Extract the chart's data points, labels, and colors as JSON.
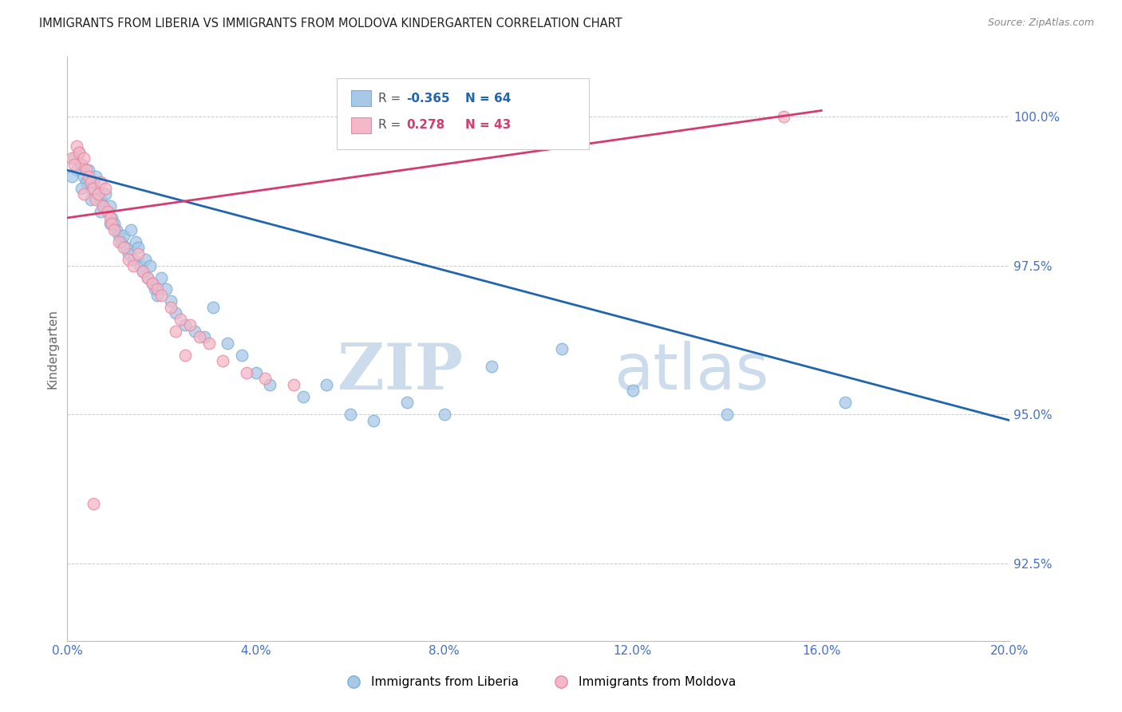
{
  "title": "IMMIGRANTS FROM LIBERIA VS IMMIGRANTS FROM MOLDOVA KINDERGARTEN CORRELATION CHART",
  "source": "Source: ZipAtlas.com",
  "ylabel": "Kindergarten",
  "yticks": [
    92.5,
    95.0,
    97.5,
    100.0
  ],
  "ytick_labels": [
    "92.5%",
    "95.0%",
    "97.5%",
    "100.0%"
  ],
  "xtick_positions": [
    0.0,
    4.0,
    8.0,
    12.0,
    16.0,
    20.0
  ],
  "xtick_labels": [
    "0.0%",
    "4.0%",
    "8.0%",
    "12.0%",
    "16.0%",
    "20.0%"
  ],
  "xmin": 0.0,
  "xmax": 20.0,
  "ymin": 91.2,
  "ymax": 101.0,
  "legend_blue_text1": "R = ",
  "legend_blue_r": "-0.365",
  "legend_blue_n": "N = 64",
  "legend_pink_text1": "R =  ",
  "legend_pink_r": "0.278",
  "legend_pink_n": "N = 43",
  "legend_label_blue": "Immigrants from Liberia",
  "legend_label_pink": "Immigrants from Moldova",
  "blue_color": "#a8c8e8",
  "blue_edge_color": "#7aafd4",
  "pink_color": "#f4b8c8",
  "pink_edge_color": "#e88aa0",
  "blue_line_color": "#2166ac",
  "pink_line_color": "#d63a6e",
  "background_color": "#ffffff",
  "watermark_zip": "ZIP",
  "watermark_atlas": "atlas",
  "watermark_color": "#ccdcec",
  "blue_scatter_x": [
    0.15,
    0.2,
    0.25,
    0.3,
    0.35,
    0.4,
    0.45,
    0.5,
    0.55,
    0.6,
    0.65,
    0.7,
    0.75,
    0.8,
    0.85,
    0.9,
    0.95,
    1.0,
    1.05,
    1.1,
    1.15,
    1.2,
    1.25,
    1.3,
    1.35,
    1.4,
    1.45,
    1.5,
    1.55,
    1.6,
    1.65,
    1.7,
    1.75,
    1.8,
    1.85,
    1.9,
    2.0,
    2.1,
    2.2,
    2.3,
    2.5,
    2.7,
    2.9,
    3.1,
    3.4,
    3.7,
    4.0,
    4.3,
    5.0,
    5.5,
    6.0,
    6.5,
    7.2,
    8.0,
    9.0,
    10.5,
    12.0,
    14.0,
    16.5,
    0.1,
    0.3,
    0.5,
    0.7,
    0.9
  ],
  "blue_scatter_y": [
    99.3,
    99.1,
    99.4,
    99.2,
    99.0,
    98.9,
    99.1,
    98.8,
    98.9,
    99.0,
    98.7,
    98.6,
    98.5,
    98.7,
    98.4,
    98.5,
    98.3,
    98.2,
    98.1,
    98.0,
    97.9,
    98.0,
    97.8,
    97.7,
    98.1,
    97.6,
    97.9,
    97.8,
    97.5,
    97.4,
    97.6,
    97.3,
    97.5,
    97.2,
    97.1,
    97.0,
    97.3,
    97.1,
    96.9,
    96.7,
    96.5,
    96.4,
    96.3,
    96.8,
    96.2,
    96.0,
    95.7,
    95.5,
    95.3,
    95.5,
    95.0,
    94.9,
    95.2,
    95.0,
    95.8,
    96.1,
    95.4,
    95.0,
    95.2,
    99.0,
    98.8,
    98.6,
    98.4,
    98.2
  ],
  "pink_scatter_x": [
    0.1,
    0.2,
    0.25,
    0.3,
    0.35,
    0.4,
    0.45,
    0.5,
    0.55,
    0.6,
    0.65,
    0.7,
    0.75,
    0.8,
    0.85,
    0.9,
    0.95,
    1.0,
    1.1,
    1.2,
    1.3,
    1.4,
    1.5,
    1.6,
    1.7,
    1.8,
    1.9,
    2.0,
    2.2,
    2.4,
    2.6,
    2.8,
    3.0,
    3.3,
    3.8,
    4.2,
    2.3,
    2.5,
    4.8,
    0.15,
    0.35,
    0.55,
    15.2
  ],
  "pink_scatter_y": [
    99.3,
    99.5,
    99.4,
    99.2,
    99.3,
    99.1,
    99.0,
    98.9,
    98.8,
    98.6,
    98.7,
    98.9,
    98.5,
    98.8,
    98.4,
    98.3,
    98.2,
    98.1,
    97.9,
    97.8,
    97.6,
    97.5,
    97.7,
    97.4,
    97.3,
    97.2,
    97.1,
    97.0,
    96.8,
    96.6,
    96.5,
    96.3,
    96.2,
    95.9,
    95.7,
    95.6,
    96.4,
    96.0,
    95.5,
    99.2,
    98.7,
    93.5,
    100.0
  ],
  "blue_line_x": [
    0.0,
    20.0
  ],
  "blue_line_y": [
    99.1,
    94.9
  ],
  "pink_line_x": [
    0.0,
    16.0
  ],
  "pink_line_y": [
    98.3,
    100.1
  ]
}
